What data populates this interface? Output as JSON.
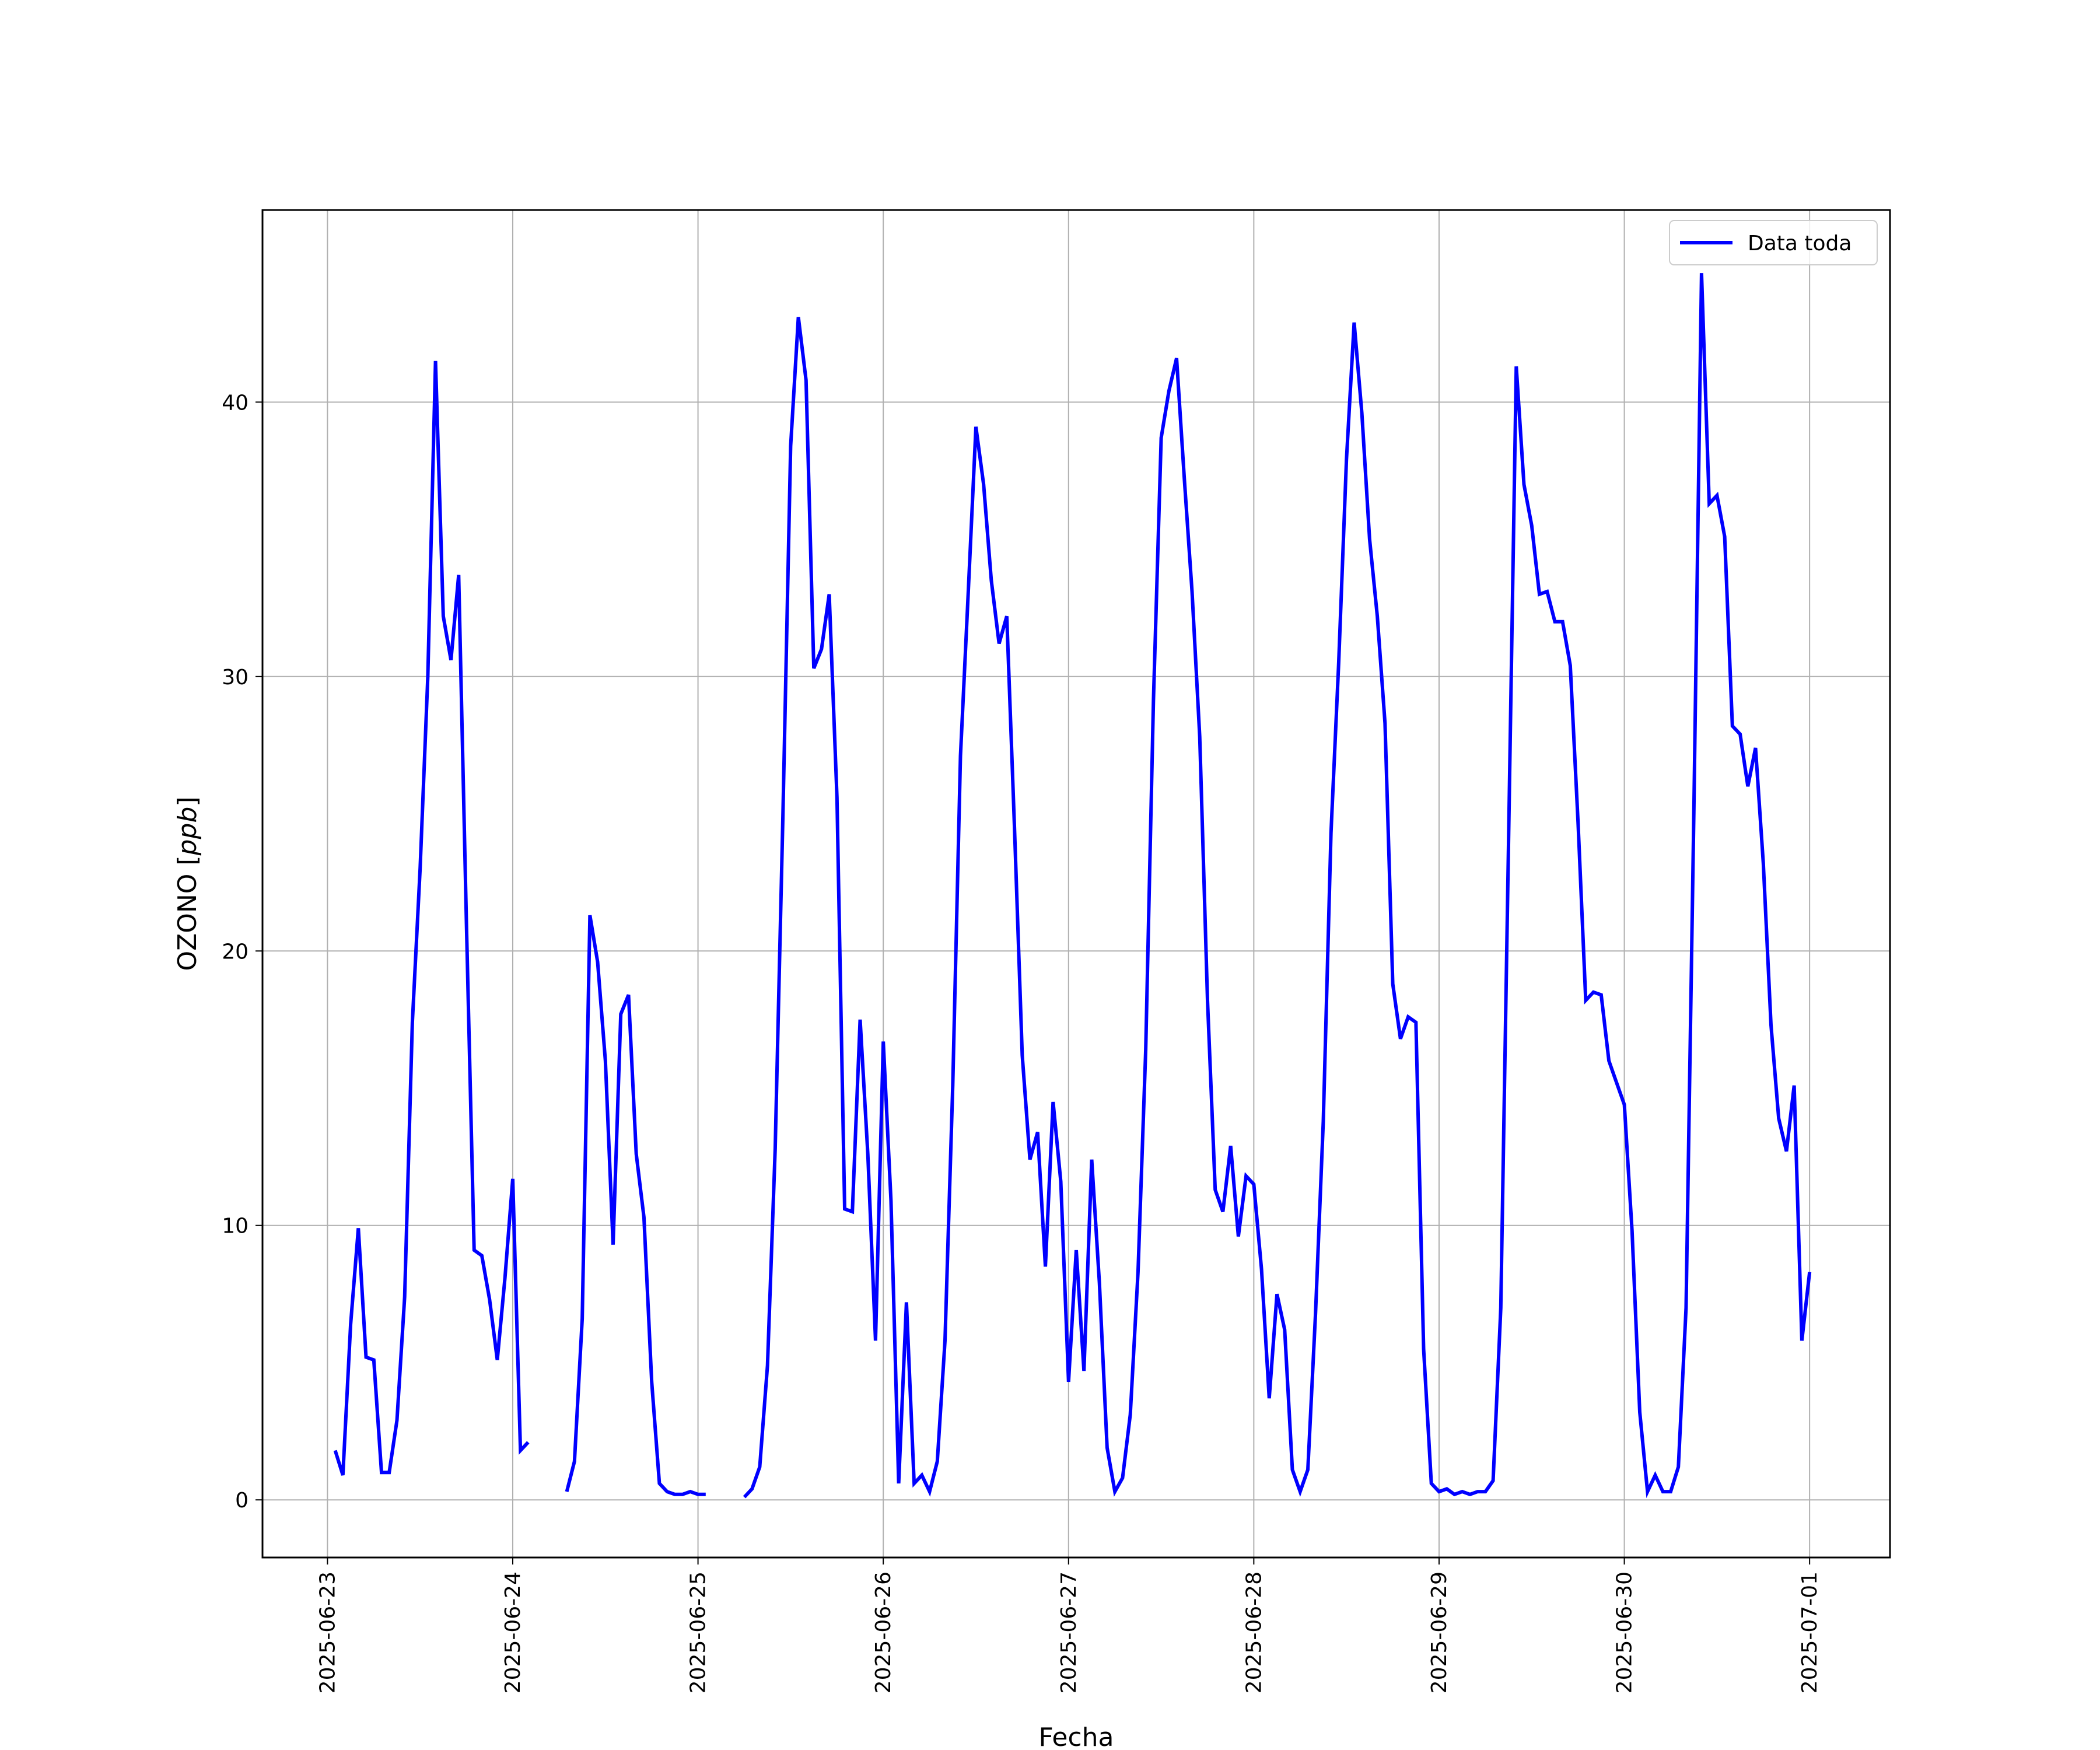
{
  "chart_data": {
    "type": "line",
    "title": "",
    "xlabel": "Fecha",
    "ylabel_text": "OZONO [",
    "ylabel_math": "ppb",
    "ylabel_close": "]",
    "x_ticks": [
      "2025-06-23",
      "2025-06-24",
      "2025-06-25",
      "2025-06-26",
      "2025-06-27",
      "2025-06-28",
      "2025-06-29",
      "2025-06-30",
      "2025-07-01"
    ],
    "y_ticks": [
      0,
      10,
      20,
      30,
      40
    ],
    "xlim": [
      "2025-06-22T15:35",
      "2025-07-01T10:25"
    ],
    "ylim": [
      -2.1,
      47.0
    ],
    "grid": true,
    "legend_position": "top-right",
    "series": [
      {
        "name": "Data toda",
        "color": "#0000ff",
        "segments": [
          [
            [
              "2025-06-23T01:00",
              1.8
            ],
            [
              "2025-06-23T02:00",
              0.9
            ],
            [
              "2025-06-23T03:00",
              6.4
            ],
            [
              "2025-06-23T04:00",
              9.9
            ],
            [
              "2025-06-23T05:00",
              5.2
            ],
            [
              "2025-06-23T06:00",
              5.1
            ],
            [
              "2025-06-23T07:00",
              1.0
            ],
            [
              "2025-06-23T08:00",
              1.0
            ],
            [
              "2025-06-23T09:00",
              2.9
            ],
            [
              "2025-06-23T10:00",
              7.4
            ],
            [
              "2025-06-23T11:00",
              17.4
            ],
            [
              "2025-06-23T12:00",
              23.0
            ],
            [
              "2025-06-23T13:00",
              30.0
            ],
            [
              "2025-06-23T14:00",
              41.5
            ],
            [
              "2025-06-23T15:00",
              32.2
            ],
            [
              "2025-06-23T16:00",
              30.6
            ],
            [
              "2025-06-23T17:00",
              33.7
            ],
            [
              "2025-06-23T18:00",
              21.0
            ],
            [
              "2025-06-23T19:00",
              9.1
            ],
            [
              "2025-06-23T20:00",
              8.9
            ],
            [
              "2025-06-23T21:00",
              7.3
            ],
            [
              "2025-06-23T22:00",
              5.1
            ],
            [
              "2025-06-23T23:00",
              8.1
            ],
            [
              "2025-06-24T00:00",
              11.7
            ],
            [
              "2025-06-24T01:00",
              1.8
            ],
            [
              "2025-06-24T02:00",
              2.1
            ]
          ],
          [
            [
              "2025-06-24T07:00",
              0.3
            ],
            [
              "2025-06-24T08:00",
              1.4
            ],
            [
              "2025-06-24T09:00",
              6.6
            ],
            [
              "2025-06-24T10:00",
              21.3
            ],
            [
              "2025-06-24T11:00",
              19.6
            ],
            [
              "2025-06-24T12:00",
              16.0
            ],
            [
              "2025-06-24T13:00",
              9.3
            ],
            [
              "2025-06-24T14:00",
              17.7
            ],
            [
              "2025-06-24T15:00",
              18.4
            ],
            [
              "2025-06-24T16:00",
              12.6
            ],
            [
              "2025-06-24T17:00",
              10.3
            ],
            [
              "2025-06-24T18:00",
              4.3
            ],
            [
              "2025-06-24T19:00",
              0.6
            ],
            [
              "2025-06-24T20:00",
              0.3
            ],
            [
              "2025-06-24T21:00",
              0.2
            ],
            [
              "2025-06-24T22:00",
              0.2
            ],
            [
              "2025-06-24T23:00",
              0.3
            ],
            [
              "2025-06-25T00:00",
              0.2
            ],
            [
              "2025-06-25T01:00",
              0.2
            ]
          ],
          [
            [
              "2025-06-25T06:00",
              0.1
            ],
            [
              "2025-06-25T07:00",
              0.4
            ],
            [
              "2025-06-25T08:00",
              1.2
            ],
            [
              "2025-06-25T09:00",
              4.9
            ],
            [
              "2025-06-25T10:00",
              12.8
            ],
            [
              "2025-06-25T11:00",
              24.9
            ],
            [
              "2025-06-25T12:00",
              38.4
            ],
            [
              "2025-06-25T13:00",
              43.1
            ],
            [
              "2025-06-25T14:00",
              40.8
            ],
            [
              "2025-06-25T15:00",
              30.3
            ],
            [
              "2025-06-25T16:00",
              31.0
            ],
            [
              "2025-06-25T17:00",
              33.0
            ],
            [
              "2025-06-25T18:00",
              25.6
            ],
            [
              "2025-06-25T19:00",
              10.6
            ],
            [
              "2025-06-25T20:00",
              10.5
            ],
            [
              "2025-06-25T21:00",
              17.5
            ],
            [
              "2025-06-25T22:00",
              12.6
            ],
            [
              "2025-06-25T23:00",
              5.8
            ],
            [
              "2025-06-26T00:00",
              16.7
            ],
            [
              "2025-06-26T01:00",
              10.9
            ],
            [
              "2025-06-26T02:00",
              0.6
            ],
            [
              "2025-06-26T03:00",
              7.2
            ],
            [
              "2025-06-26T04:00",
              0.6
            ],
            [
              "2025-06-26T05:00",
              0.9
            ],
            [
              "2025-06-26T06:00",
              0.3
            ],
            [
              "2025-06-26T07:00",
              1.4
            ],
            [
              "2025-06-26T08:00",
              5.8
            ],
            [
              "2025-06-26T09:00",
              15.1
            ],
            [
              "2025-06-26T10:00",
              27.1
            ],
            [
              "2025-06-26T11:00",
              33.0
            ],
            [
              "2025-06-26T12:00",
              39.1
            ],
            [
              "2025-06-26T13:00",
              37.0
            ],
            [
              "2025-06-26T14:00",
              33.5
            ],
            [
              "2025-06-26T15:00",
              31.2
            ],
            [
              "2025-06-26T16:00",
              32.2
            ],
            [
              "2025-06-26T17:00",
              24.5
            ],
            [
              "2025-06-26T18:00",
              16.2
            ],
            [
              "2025-06-26T19:00",
              12.4
            ],
            [
              "2025-06-26T20:00",
              13.4
            ],
            [
              "2025-06-26T21:00",
              8.5
            ],
            [
              "2025-06-26T22:00",
              14.5
            ],
            [
              "2025-06-26T23:00",
              11.6
            ],
            [
              "2025-06-27T00:00",
              4.3
            ],
            [
              "2025-06-27T01:00",
              9.1
            ],
            [
              "2025-06-27T02:00",
              4.7
            ],
            [
              "2025-06-27T03:00",
              12.4
            ],
            [
              "2025-06-27T04:00",
              7.9
            ],
            [
              "2025-06-27T05:00",
              1.9
            ],
            [
              "2025-06-27T06:00",
              0.3
            ],
            [
              "2025-06-27T07:00",
              0.8
            ],
            [
              "2025-06-27T08:00",
              3.1
            ],
            [
              "2025-06-27T09:00",
              8.3
            ],
            [
              "2025-06-27T10:00",
              16.4
            ],
            [
              "2025-06-27T11:00",
              29.1
            ],
            [
              "2025-06-27T12:00",
              38.7
            ],
            [
              "2025-06-27T13:00",
              40.4
            ],
            [
              "2025-06-27T14:00",
              41.6
            ],
            [
              "2025-06-27T15:00",
              37.2
            ],
            [
              "2025-06-27T16:00",
              33.1
            ],
            [
              "2025-06-27T17:00",
              27.8
            ],
            [
              "2025-06-27T18:00",
              18.2
            ],
            [
              "2025-06-27T19:00",
              11.3
            ],
            [
              "2025-06-27T20:00",
              10.5
            ],
            [
              "2025-06-27T21:00",
              12.9
            ],
            [
              "2025-06-27T22:00",
              9.6
            ],
            [
              "2025-06-27T23:00",
              11.8
            ],
            [
              "2025-06-28T00:00",
              11.5
            ],
            [
              "2025-06-28T01:00",
              8.4
            ],
            [
              "2025-06-28T02:00",
              3.7
            ],
            [
              "2025-06-28T03:00",
              7.5
            ],
            [
              "2025-06-28T04:00",
              6.2
            ],
            [
              "2025-06-28T05:00",
              1.1
            ],
            [
              "2025-06-28T06:00",
              0.3
            ],
            [
              "2025-06-28T07:00",
              1.1
            ],
            [
              "2025-06-28T08:00",
              6.8
            ],
            [
              "2025-06-28T09:00",
              13.8
            ],
            [
              "2025-06-28T10:00",
              24.3
            ],
            [
              "2025-06-28T11:00",
              30.5
            ],
            [
              "2025-06-28T12:00",
              37.9
            ],
            [
              "2025-06-28T13:00",
              42.9
            ],
            [
              "2025-06-28T14:00",
              39.6
            ],
            [
              "2025-06-28T15:00",
              35.0
            ],
            [
              "2025-06-28T16:00",
              32.2
            ],
            [
              "2025-06-28T17:00",
              28.3
            ],
            [
              "2025-06-28T18:00",
              18.8
            ],
            [
              "2025-06-28T19:00",
              16.8
            ],
            [
              "2025-06-28T20:00",
              17.6
            ],
            [
              "2025-06-28T21:00",
              17.4
            ],
            [
              "2025-06-28T22:00",
              5.5
            ],
            [
              "2025-06-28T23:00",
              0.6
            ],
            [
              "2025-06-29T00:00",
              0.3
            ],
            [
              "2025-06-29T01:00",
              0.4
            ],
            [
              "2025-06-29T02:00",
              0.2
            ],
            [
              "2025-06-29T03:00",
              0.3
            ],
            [
              "2025-06-29T04:00",
              0.2
            ],
            [
              "2025-06-29T05:00",
              0.3
            ],
            [
              "2025-06-29T06:00",
              0.3
            ],
            [
              "2025-06-29T07:00",
              0.7
            ],
            [
              "2025-06-29T08:00",
              7.0
            ],
            [
              "2025-06-29T09:00",
              24.0
            ],
            [
              "2025-06-29T10:00",
              41.3
            ],
            [
              "2025-06-29T11:00",
              37.0
            ],
            [
              "2025-06-29T12:00",
              35.5
            ],
            [
              "2025-06-29T13:00",
              33.0
            ],
            [
              "2025-06-29T14:00",
              33.1
            ],
            [
              "2025-06-29T15:00",
              32.0
            ],
            [
              "2025-06-29T16:00",
              32.0
            ],
            [
              "2025-06-29T17:00",
              30.4
            ],
            [
              "2025-06-29T18:00",
              24.7
            ],
            [
              "2025-06-29T19:00",
              18.2
            ],
            [
              "2025-06-29T20:00",
              18.5
            ],
            [
              "2025-06-29T21:00",
              18.4
            ],
            [
              "2025-06-29T22:00",
              16.0
            ],
            [
              "2025-06-29T23:00",
              15.2
            ],
            [
              "2025-06-30T00:00",
              14.4
            ],
            [
              "2025-06-30T01:00",
              9.8
            ],
            [
              "2025-06-30T02:00",
              3.2
            ],
            [
              "2025-06-30T03:00",
              0.3
            ],
            [
              "2025-06-30T04:00",
              0.9
            ],
            [
              "2025-06-30T05:00",
              0.3
            ],
            [
              "2025-06-30T06:00",
              0.3
            ],
            [
              "2025-06-30T07:00",
              1.2
            ],
            [
              "2025-06-30T08:00",
              7.0
            ],
            [
              "2025-06-30T09:00",
              25.0
            ],
            [
              "2025-06-30T10:00",
              44.7
            ],
            [
              "2025-06-30T11:00",
              36.3
            ],
            [
              "2025-06-30T12:00",
              36.6
            ],
            [
              "2025-06-30T13:00",
              35.1
            ],
            [
              "2025-06-30T14:00",
              28.2
            ],
            [
              "2025-06-30T15:00",
              27.9
            ],
            [
              "2025-06-30T16:00",
              26.0
            ],
            [
              "2025-06-30T17:00",
              27.4
            ],
            [
              "2025-06-30T18:00",
              23.2
            ],
            [
              "2025-06-30T19:00",
              17.3
            ],
            [
              "2025-06-30T20:00",
              13.9
            ],
            [
              "2025-06-30T21:00",
              12.7
            ],
            [
              "2025-06-30T22:00",
              15.1
            ],
            [
              "2025-06-30T23:00",
              5.8
            ],
            [
              "2025-07-01T00:00",
              8.3
            ]
          ]
        ]
      }
    ]
  }
}
